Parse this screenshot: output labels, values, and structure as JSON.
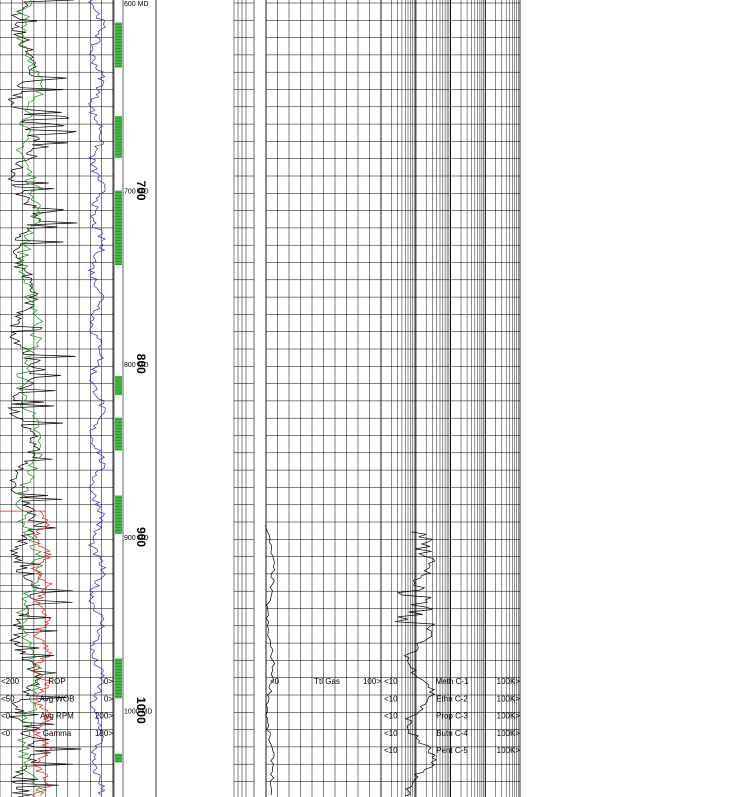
{
  "chart_data": {
    "type": "line",
    "depth_range": [
      590,
      1050
    ],
    "depth_ticks": [
      {
        "major": "700",
        "minor": "700 MD",
        "value": 700
      },
      {
        "major": "800",
        "minor": "800 MD",
        "value": 800
      },
      {
        "major": "900",
        "minor": "900 MD",
        "value": 900
      },
      {
        "major": "1000",
        "minor": "1000 MD",
        "value": 1000
      }
    ],
    "top_depth_label": "600 MD",
    "left_track_legend": [
      {
        "min": "<200",
        "name": "ROP",
        "max": "0>"
      },
      {
        "min": "<50",
        "name": "Avg WOB",
        "max": "0>"
      },
      {
        "min": "<0",
        "name": "Avg RPM",
        "max": "200>"
      },
      {
        "min": "<0",
        "name": "Gamma",
        "max": "150>"
      }
    ],
    "gas_legend": {
      "min": "<0",
      "name": "Ttl Gas",
      "max": "100>"
    },
    "chromatograph_legend": [
      {
        "min": "<10",
        "name": "Meth C-1",
        "max": "100K>"
      },
      {
        "min": "<10",
        "name": "Ethn C-2",
        "max": "100K>"
      },
      {
        "min": "<10",
        "name": "Prop C-3",
        "max": "100K>"
      },
      {
        "min": "<10",
        "name": "Butn C-4",
        "max": "100K>"
      },
      {
        "min": "<10",
        "name": "Pent C-5",
        "max": "100K>"
      }
    ],
    "series": [
      {
        "name": "ROP",
        "color": "#000000",
        "scale": [
          200,
          0
        ]
      },
      {
        "name": "Avg WOB",
        "color": "#1a8f1a",
        "scale": [
          50,
          0
        ]
      },
      {
        "name": "Avg RPM",
        "color": "#e02020",
        "scale": [
          0,
          200
        ]
      },
      {
        "name": "Gamma",
        "color": "#2a2ad0",
        "scale": [
          0,
          150
        ]
      },
      {
        "name": "Ttl Gas",
        "color": "#000000",
        "scale": [
          0,
          100
        ]
      },
      {
        "name": "Meth C-1",
        "color": "#000000",
        "scale": [
          10,
          100000
        ],
        "log": true
      }
    ],
    "lithology_bands": [
      [
        603,
        629
      ],
      [
        657,
        681
      ],
      [
        700,
        743
      ],
      [
        807,
        818
      ],
      [
        831,
        850
      ],
      [
        876,
        898
      ],
      [
        970,
        993
      ],
      [
        1025,
        1030
      ]
    ]
  }
}
